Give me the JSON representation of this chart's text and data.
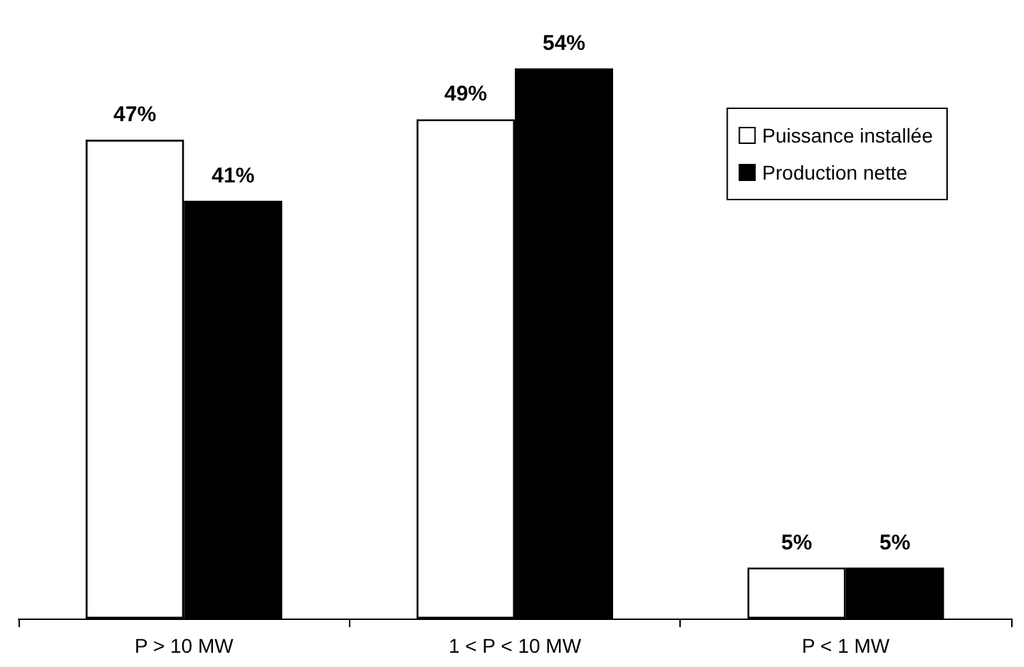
{
  "chart_data": {
    "type": "bar",
    "categories": [
      "P > 10 MW",
      "1 < P < 10 MW",
      "P < 1 MW"
    ],
    "series": [
      {
        "name": "Puissance installée",
        "color": "#ffffff",
        "values": [
          47,
          49,
          5
        ],
        "value_labels": [
          "47%",
          "49%",
          "5%"
        ]
      },
      {
        "name": "Production nette",
        "color": "#000000",
        "values": [
          41,
          54,
          5
        ],
        "value_labels": [
          "41%",
          "54%",
          "5%"
        ]
      }
    ],
    "legend": "top right",
    "grid": false
  }
}
